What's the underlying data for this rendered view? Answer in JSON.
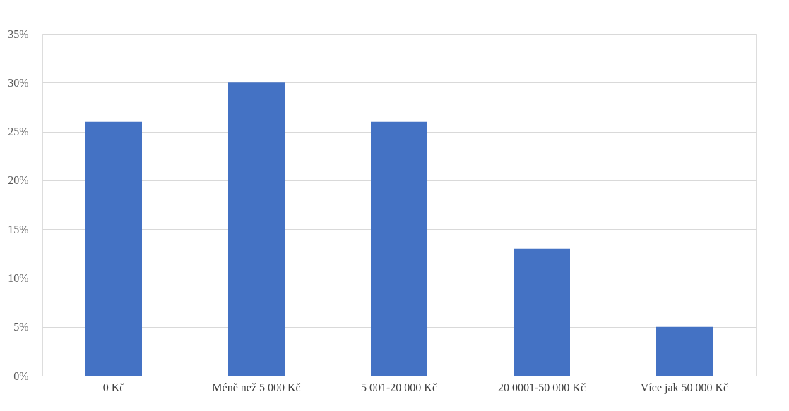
{
  "chart_data": {
    "type": "bar",
    "categories": [
      "0 Kč",
      "Méně než 5 000 Kč",
      "5 001-20 000 Kč",
      "20 0001-50 000 Kč",
      "Více jak 50 000 Kč"
    ],
    "values": [
      26,
      30,
      26,
      13,
      5
    ],
    "color": "#4472c4",
    "ylim": [
      0,
      35
    ],
    "yticks": [
      {
        "value": 0,
        "label": "0%"
      },
      {
        "value": 5,
        "label": "5%"
      },
      {
        "value": 10,
        "label": "10%"
      },
      {
        "value": 15,
        "label": "15%"
      },
      {
        "value": 20,
        "label": "20%"
      },
      {
        "value": 25,
        "label": "25%"
      },
      {
        "value": 30,
        "label": "30%"
      },
      {
        "value": 35,
        "label": "35%"
      }
    ],
    "grid": "y"
  }
}
